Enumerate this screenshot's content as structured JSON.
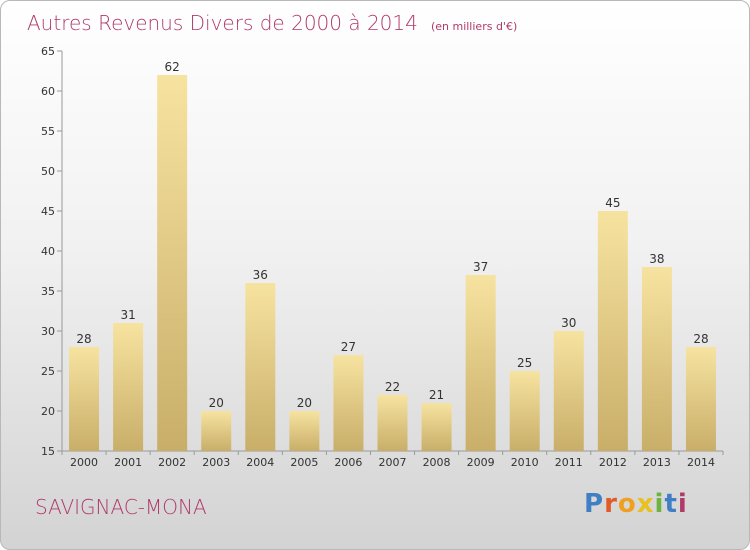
{
  "chart_data": {
    "type": "bar",
    "title": "Autres Revenus Divers de 2000 à 2014",
    "unit": "(en milliers d'€)",
    "categories": [
      "2000",
      "2001",
      "2002",
      "2003",
      "2004",
      "2005",
      "2006",
      "2007",
      "2008",
      "2009",
      "2010",
      "2011",
      "2012",
      "2013",
      "2014"
    ],
    "values": [
      28,
      31,
      62,
      20,
      36,
      20,
      27,
      22,
      21,
      37,
      25,
      30,
      45,
      38,
      28
    ],
    "ylim": [
      15,
      65
    ],
    "yticks": [
      15,
      20,
      25,
      30,
      35,
      40,
      45,
      50,
      55,
      60,
      65
    ],
    "grid": false,
    "colors": {
      "bar_light": "#f7e3a0",
      "bar_dark": "#c8ae69",
      "title": "#b03a6a"
    }
  },
  "commune": "SAVIGNAC-MONA",
  "logo": {
    "text": "Proxiti"
  }
}
